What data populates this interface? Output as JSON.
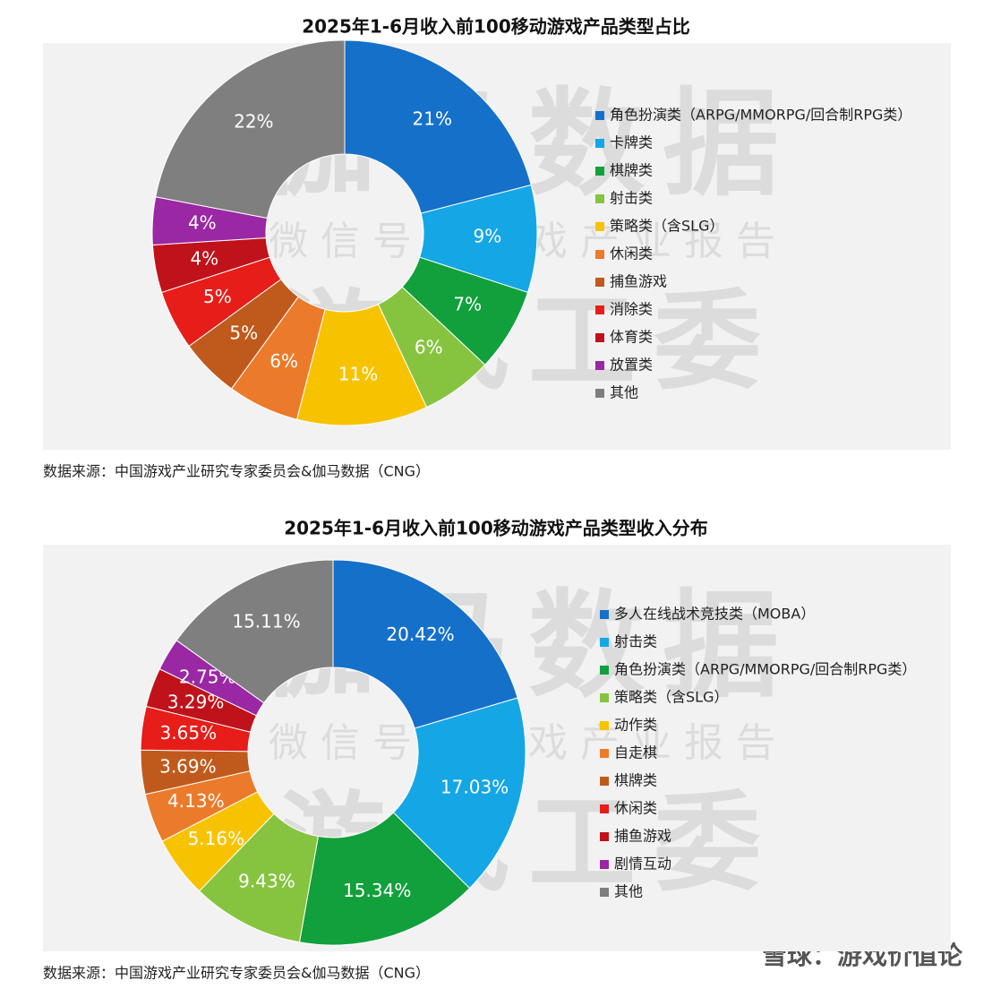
{
  "chart_data": [
    {
      "type": "donut",
      "title": "2025年1-6月收入前100移动游戏产品类型占比",
      "categories": [
        "角色扮演类（ARPG/MMORPG/回合制RPG类）",
        "卡牌类",
        "棋牌类",
        "射击类",
        "策略类（含SLG）",
        "休闲类",
        "捕鱼游戏",
        "消除类",
        "体育类",
        "放置类",
        "其他"
      ],
      "values": [
        21,
        9,
        7,
        6,
        11,
        6,
        5,
        5,
        4,
        4,
        22
      ],
      "value_labels": [
        "21%",
        "9%",
        "7%",
        "6%",
        "11%",
        "6%",
        "5%",
        "5%",
        "4%",
        "4%",
        "22%"
      ],
      "colors": [
        "#1570c9",
        "#15a6e6",
        "#12a03c",
        "#86c440",
        "#f7c300",
        "#eb7b2a",
        "#c05a1c",
        "#e71d19",
        "#c0121a",
        "#9a27a4",
        "#7f7f7f"
      ],
      "legend": "right",
      "source": "数据来源：中国游戏产业研究专家委员会&伽马数据（CNG）",
      "watermarks": [
        "伽马数据",
        "微信号：游戏产业报告",
        "游戏工委"
      ]
    },
    {
      "type": "donut",
      "title": "2025年1-6月收入前100移动游戏产品类型收入分布",
      "categories": [
        "多人在线战术竞技类（MOBA）",
        "射击类",
        "角色扮演类（ARPG/MMORPG/回合制RPG类）",
        "策略类（含SLG）",
        "动作类",
        "自走棋",
        "棋牌类",
        "休闲类",
        "捕鱼游戏",
        "剧情互动",
        "其他"
      ],
      "values": [
        20.42,
        17.03,
        15.34,
        9.43,
        5.16,
        4.13,
        3.69,
        3.65,
        3.29,
        2.75,
        15.11
      ],
      "value_labels": [
        "20.42%",
        "17.03%",
        "15.34%",
        "9.43%",
        "5.16%",
        "4.13%",
        "3.69%",
        "3.65%",
        "3.29%",
        "2.75%",
        "15.11%"
      ],
      "colors": [
        "#1570c9",
        "#15a6e6",
        "#12a03c",
        "#86c440",
        "#f7c300",
        "#eb7b2a",
        "#c05a1c",
        "#e71d19",
        "#c0121a",
        "#9a27a4",
        "#7f7f7f"
      ],
      "legend": "right",
      "source": "数据来源：中国游戏产业研究专家委员会&伽马数据（CNG）",
      "watermarks": [
        "伽马数据",
        "微信号：游戏产业报告",
        "游戏工委"
      ]
    }
  ],
  "footer_watermark": "雪球：游戏价值论"
}
